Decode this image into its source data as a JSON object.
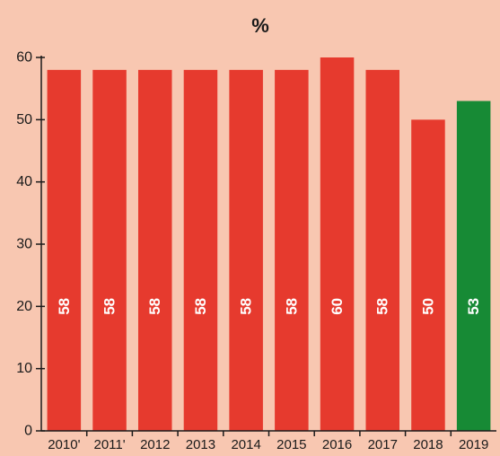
{
  "chart_data": {
    "type": "bar",
    "title": "%",
    "xlabel": "",
    "ylabel": "",
    "categories": [
      "2010'",
      "2011'",
      "2012",
      "2013",
      "2014",
      "2015",
      "2016",
      "2017",
      "2018",
      "2019"
    ],
    "values": [
      58,
      58,
      58,
      58,
      58,
      58,
      60,
      58,
      50,
      53
    ],
    "data_labels": [
      "58",
      "58",
      "58",
      "58",
      "58",
      "58",
      "60",
      "58",
      "50",
      "53"
    ],
    "yticks": [
      "0",
      "10",
      "20",
      "30",
      "40",
      "50",
      "60"
    ],
    "ylim": [
      0,
      60
    ],
    "grid": false,
    "legend": "none",
    "colors": {
      "bar": "#e63a2e",
      "highlight_bar": "#178a35",
      "background": "#f8c7b1",
      "axis": "#1a1a1a",
      "label": "#ffffff"
    },
    "highlight_index": 9
  }
}
